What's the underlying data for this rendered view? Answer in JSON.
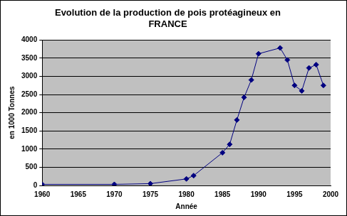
{
  "chart_data": {
    "type": "line",
    "title": [
      "Evolution de la production de pois protéagineux en",
      "FRANCE"
    ],
    "x_label": "Année",
    "y_label": "en 1000 Tonnes",
    "x": [
      1960,
      1970,
      1975,
      1980,
      1981,
      1985,
      1986,
      1987,
      1988,
      1989,
      1990,
      1993,
      1994,
      1995,
      1996,
      1997,
      1998,
      1999
    ],
    "values": [
      30,
      30,
      50,
      180,
      270,
      900,
      1130,
      1800,
      2420,
      2900,
      3620,
      3780,
      3450,
      2750,
      2600,
      3230,
      3320,
      2750
    ],
    "color": "#000080",
    "marker": "diamond",
    "xlim": [
      1960,
      2000
    ],
    "xticks": [
      1960,
      1965,
      1970,
      1975,
      1980,
      1985,
      1990,
      1995,
      2000
    ],
    "ylim": [
      0,
      4000
    ],
    "yticks": [
      0,
      500,
      1000,
      1500,
      2000,
      2500,
      3000,
      3500,
      4000
    ],
    "grid": true
  }
}
